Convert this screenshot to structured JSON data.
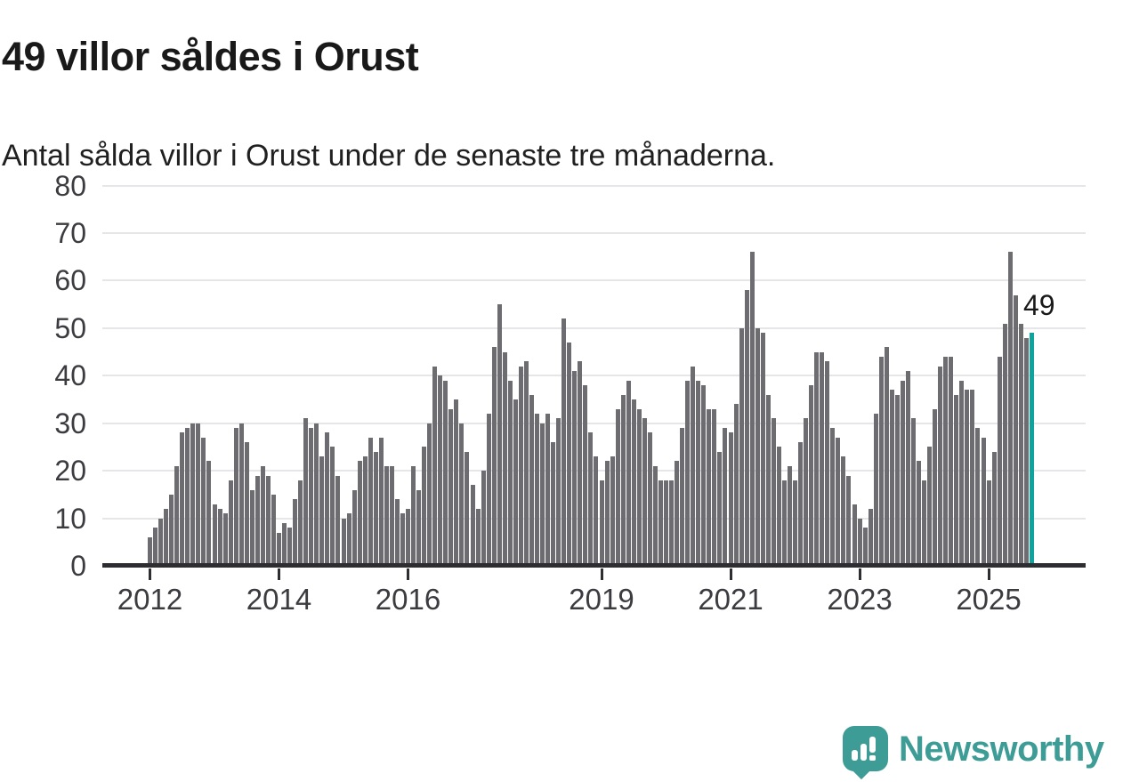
{
  "header": {
    "title": "49 villor såldes i Orust",
    "subtitle": "Antal sålda villor i Orust under de senaste tre månaderna."
  },
  "chart_data": {
    "type": "bar",
    "title": "49 villor såldes i Orust",
    "subtitle": "Antal sålda villor i Orust under de senaste tre månaderna.",
    "description": "Monthly bars of houses sold in Orust, rolling three-month totals, Jan 2012 through latest month",
    "start": {
      "year": 2012,
      "month": 1
    },
    "values": [
      6,
      8,
      10,
      12,
      15,
      21,
      28,
      29,
      30,
      30,
      27,
      22,
      13,
      12,
      11,
      18,
      29,
      30,
      26,
      16,
      19,
      21,
      19,
      15,
      7,
      9,
      8,
      14,
      18,
      31,
      29,
      30,
      23,
      28,
      25,
      19,
      10,
      11,
      16,
      22,
      23,
      27,
      24,
      27,
      21,
      21,
      14,
      11,
      12,
      21,
      16,
      25,
      30,
      42,
      40,
      39,
      33,
      35,
      30,
      24,
      17,
      12,
      20,
      32,
      46,
      55,
      45,
      39,
      35,
      42,
      43,
      36,
      32,
      30,
      32,
      26,
      31,
      52,
      47,
      41,
      43,
      38,
      28,
      23,
      18,
      22,
      23,
      33,
      36,
      39,
      35,
      33,
      31,
      28,
      21,
      18,
      18,
      18,
      22,
      29,
      39,
      42,
      39,
      38,
      33,
      33,
      24,
      29,
      28,
      34,
      50,
      58,
      66,
      50,
      49,
      36,
      31,
      25,
      18,
      21,
      18,
      26,
      31,
      38,
      45,
      45,
      43,
      29,
      27,
      23,
      19,
      13,
      10,
      8,
      12,
      32,
      44,
      46,
      37,
      36,
      39,
      41,
      31,
      22,
      18,
      25,
      33,
      42,
      44,
      44,
      36,
      39,
      37,
      37,
      29,
      27,
      18,
      24,
      44,
      51,
      66,
      57,
      51,
      48,
      49
    ],
    "highlight_last_value": 49,
    "annotation": {
      "text": "49"
    },
    "ylim": [
      0,
      80
    ],
    "yticks": [
      0,
      10,
      20,
      30,
      40,
      50,
      60,
      70,
      80
    ],
    "xticks": [
      {
        "label": "2012",
        "month_index": 0
      },
      {
        "label": "2014",
        "month_index": 24
      },
      {
        "label": "2016",
        "month_index": 48
      },
      {
        "label": "2019",
        "month_index": 84
      },
      {
        "label": "2021",
        "month_index": 108
      },
      {
        "label": "2023",
        "month_index": 132
      },
      {
        "label": "2025",
        "month_index": 156
      }
    ],
    "grid": true,
    "legend": false,
    "colors": {
      "bar": "#6c6c71",
      "highlight": "#0fa39d",
      "axis": "#2e2e32",
      "gridline": "#e6e6e8",
      "text": "#191919",
      "axis_text": "#3b3b40",
      "brand": "#3d9c96"
    }
  },
  "footer": {
    "brand": "Newsworthy"
  }
}
